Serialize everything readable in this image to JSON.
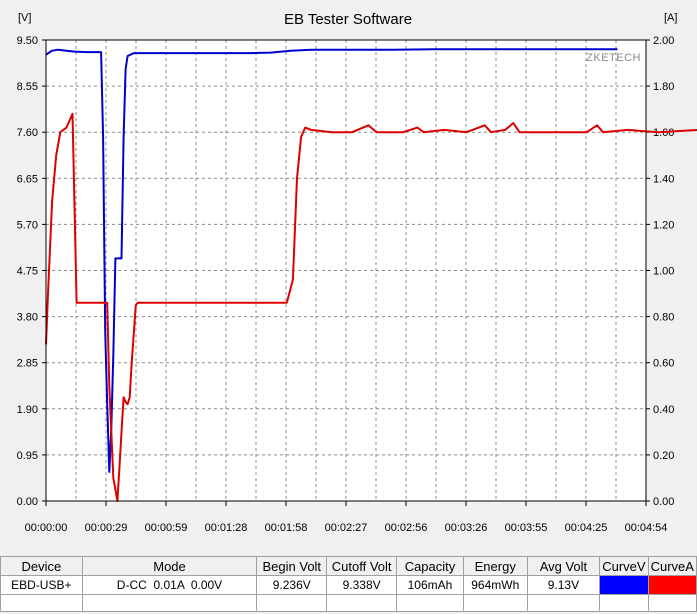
{
  "window": {
    "title": "EB Tester Software"
  },
  "chart_data": {
    "type": "line",
    "title": "EB Tester Software",
    "watermark": "ZKETECH",
    "y_left": {
      "unit": "[V]",
      "ticks": [
        "9.50",
        "8.55",
        "7.60",
        "6.65",
        "5.70",
        "4.75",
        "3.80",
        "2.85",
        "1.90",
        "0.95",
        "0.00"
      ],
      "range": [
        0,
        9.5
      ]
    },
    "y_right": {
      "unit": "[A]",
      "ticks": [
        "2.00",
        "1.80",
        "1.60",
        "1.40",
        "1.20",
        "1.00",
        "0.80",
        "0.60",
        "0.40",
        "0.20",
        "0.00"
      ],
      "range": [
        0,
        2.0
      ]
    },
    "x": {
      "ticks": [
        "00:00:00",
        "00:00:29",
        "00:00:59",
        "00:01:28",
        "00:01:58",
        "00:02:27",
        "00:02:56",
        "00:03:26",
        "00:03:55",
        "00:04:25",
        "00:04:54"
      ],
      "range_seconds": [
        0,
        294
      ]
    },
    "grid": true,
    "series": [
      {
        "name": "CurveV",
        "axis": "left",
        "color": "#0000cc",
        "points": [
          [
            0,
            9.2
          ],
          [
            3,
            9.28
          ],
          [
            6,
            9.3
          ],
          [
            10,
            9.28
          ],
          [
            14,
            9.26
          ],
          [
            20,
            9.25
          ],
          [
            27,
            9.25
          ],
          [
            28,
            7.5
          ],
          [
            29,
            3.5
          ],
          [
            30,
            2.0
          ],
          [
            31,
            0.6
          ],
          [
            32,
            1.5
          ],
          [
            33,
            3.0
          ],
          [
            34,
            5.0
          ],
          [
            37,
            5.0
          ],
          [
            38,
            7.5
          ],
          [
            39,
            8.9
          ],
          [
            40,
            9.17
          ],
          [
            43,
            9.23
          ],
          [
            60,
            9.23
          ],
          [
            80,
            9.23
          ],
          [
            100,
            9.23
          ],
          [
            110,
            9.24
          ],
          [
            120,
            9.28
          ],
          [
            130,
            9.3
          ],
          [
            150,
            9.3
          ],
          [
            170,
            9.3
          ],
          [
            190,
            9.31
          ],
          [
            200,
            9.31
          ],
          [
            230,
            9.31
          ],
          [
            260,
            9.31
          ],
          [
            280,
            9.31
          ]
        ]
      },
      {
        "name": "CurveA",
        "axis": "right",
        "color": "#dd0000",
        "points": [
          [
            0,
            0.68
          ],
          [
            1,
            0.9
          ],
          [
            3,
            1.3
          ],
          [
            5,
            1.5
          ],
          [
            7,
            1.6
          ],
          [
            10,
            1.62
          ],
          [
            12,
            1.66
          ],
          [
            13,
            1.68
          ],
          [
            14,
            1.26
          ],
          [
            15,
            0.86
          ],
          [
            18,
            0.86
          ],
          [
            25,
            0.86
          ],
          [
            30,
            0.86
          ],
          [
            31,
            0.5
          ],
          [
            32,
            0.3
          ],
          [
            33,
            0.1
          ],
          [
            34,
            0.05
          ],
          [
            35,
            0.0
          ],
          [
            36,
            0.15
          ],
          [
            37,
            0.3
          ],
          [
            38,
            0.45
          ],
          [
            39,
            0.43
          ],
          [
            40,
            0.42
          ],
          [
            41,
            0.45
          ],
          [
            42,
            0.6
          ],
          [
            44,
            0.85
          ],
          [
            45,
            0.86
          ],
          [
            60,
            0.86
          ],
          [
            80,
            0.86
          ],
          [
            100,
            0.86
          ],
          [
            118,
            0.86
          ],
          [
            121,
            0.96
          ],
          [
            123,
            1.4
          ],
          [
            125,
            1.58
          ],
          [
            127,
            1.62
          ],
          [
            130,
            1.61
          ],
          [
            140,
            1.6
          ],
          [
            150,
            1.6
          ],
          [
            158,
            1.63
          ],
          [
            162,
            1.6
          ],
          [
            175,
            1.6
          ],
          [
            182,
            1.62
          ],
          [
            185,
            1.6
          ],
          [
            195,
            1.61
          ],
          [
            206,
            1.6
          ],
          [
            215,
            1.63
          ],
          [
            218,
            1.6
          ],
          [
            225,
            1.61
          ],
          [
            229,
            1.64
          ],
          [
            232,
            1.6
          ],
          [
            240,
            1.6
          ],
          [
            250,
            1.6
          ],
          [
            265,
            1.6
          ],
          [
            270,
            1.63
          ],
          [
            273,
            1.6
          ],
          [
            285,
            1.61
          ],
          [
            300,
            1.6
          ],
          [
            320,
            1.61
          ],
          [
            332,
            1.6
          ],
          [
            337,
            1.6
          ],
          [
            340,
            1.6
          ],
          [
            344,
            1.63
          ]
        ]
      }
    ]
  },
  "table": {
    "headers": [
      "Device",
      "Mode",
      "Begin Volt",
      "Cutoff Volt",
      "Capacity",
      "Energy",
      "Avg Volt",
      "CurveV",
      "CurveA"
    ],
    "rows": [
      {
        "device": "EBD-USB+",
        "mode": "D-CC  0.01A  0.00V",
        "begin_volt": "9.236V",
        "cutoff_volt": "9.338V",
        "capacity": "106mAh",
        "energy": "964mWh",
        "avg_volt": "9.13V",
        "curve_v_color": "#0000ff",
        "curve_a_color": "#ff0000"
      }
    ]
  }
}
